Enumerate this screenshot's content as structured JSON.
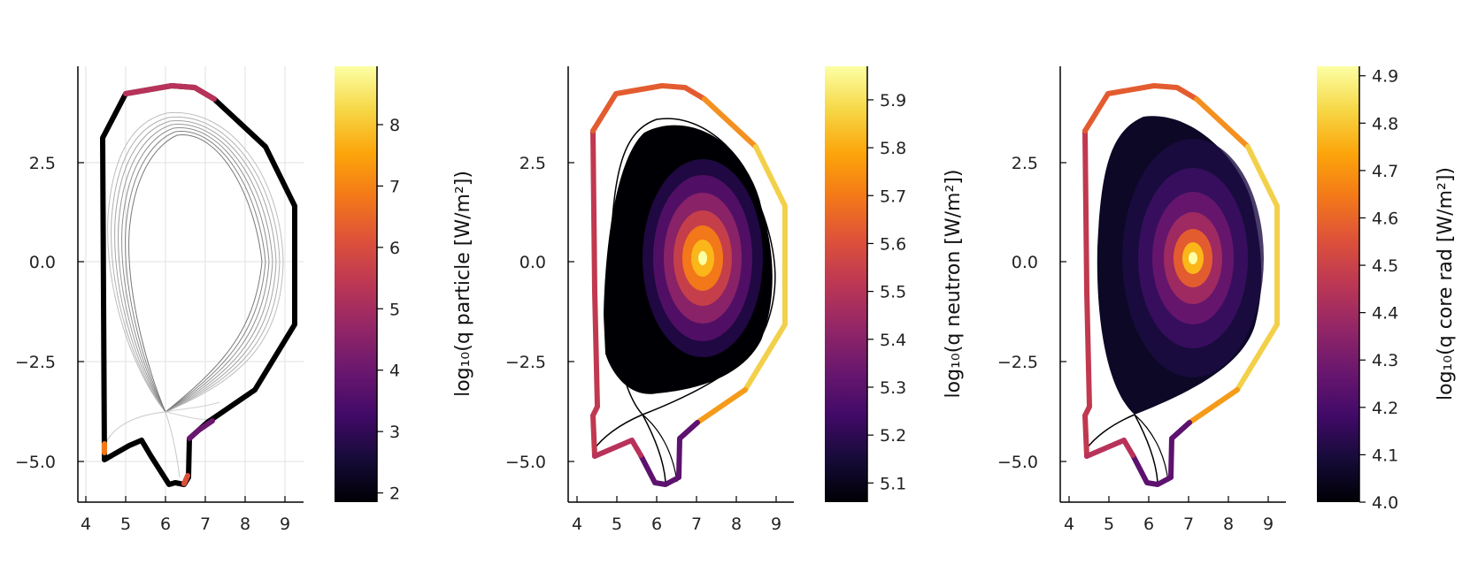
{
  "chart_data": [
    {
      "type": "heatmap",
      "title": "",
      "xlabel": "",
      "ylabel": "",
      "xlim": [
        3.8,
        9.4
      ],
      "ylim": [
        -6.0,
        4.9
      ],
      "grid": true,
      "x_ticks": [
        "4",
        "5",
        "6",
        "7",
        "8",
        "9"
      ],
      "y_ticks": [
        "2.5",
        "0.0",
        "−2.5",
        "−5.0"
      ],
      "colorbar": {
        "label": "log₁₀(q particle [W/m²])",
        "range": [
          1.85,
          8.95
        ],
        "ticks": [
          "2",
          "3",
          "4",
          "5",
          "6",
          "7",
          "8"
        ],
        "colormap": "inferno"
      },
      "content": "Wall heat-flux contour (mostly black, low) with gray separatrix and flux-surface lines; hot spots at top near 5.2–7.1 and at lower divertor legs."
    },
    {
      "type": "heatmap",
      "title": "",
      "xlabel": "",
      "ylabel": "",
      "xlim": [
        3.8,
        9.4
      ],
      "ylim": [
        -6.0,
        4.9
      ],
      "grid": false,
      "x_ticks": [
        "4",
        "5",
        "6",
        "7",
        "8",
        "9"
      ],
      "y_ticks": [
        "2.5",
        "0.0",
        "−2.5",
        "−5.0"
      ],
      "colorbar": {
        "label": "log₁₀(q neutron [W/m²])",
        "range": [
          5.06,
          5.97
        ],
        "ticks": [
          "5.1",
          "5.2",
          "5.3",
          "5.4",
          "5.5",
          "5.6",
          "5.7",
          "5.8",
          "5.9"
        ],
        "colormap": "inferno"
      },
      "content": "Neutron source emissivity heatmap peaking near R=7.1, Z=0.1 inside the separatrix; wall colored by wall neutron flux."
    },
    {
      "type": "heatmap",
      "title": "",
      "xlabel": "",
      "ylabel": "",
      "xlim": [
        3.8,
        9.4
      ],
      "ylim": [
        -6.0,
        4.9
      ],
      "grid": false,
      "x_ticks": [
        "4",
        "5",
        "6",
        "7",
        "8",
        "9"
      ],
      "y_ticks": [
        "2.5",
        "0.0",
        "−2.5",
        "−5.0"
      ],
      "colorbar": {
        "label": "log₁₀(q core rad [W/m²])",
        "range": [
          4.0,
          4.92
        ],
        "ticks": [
          "4.0",
          "4.1",
          "4.2",
          "4.3",
          "4.4",
          "4.5",
          "4.6",
          "4.7",
          "4.8",
          "4.9"
        ],
        "colormap": "inferno"
      },
      "content": "Core radiation emissivity heatmap peaking near R=7.1, Z=0.1 filling the closed flux region; wall colored by wall radiation flux."
    }
  ],
  "colors": {
    "wall_dark": "#000000",
    "flux_lines": "#9a9a9a",
    "grid": "#e6e6e6",
    "axis": "#000000"
  }
}
